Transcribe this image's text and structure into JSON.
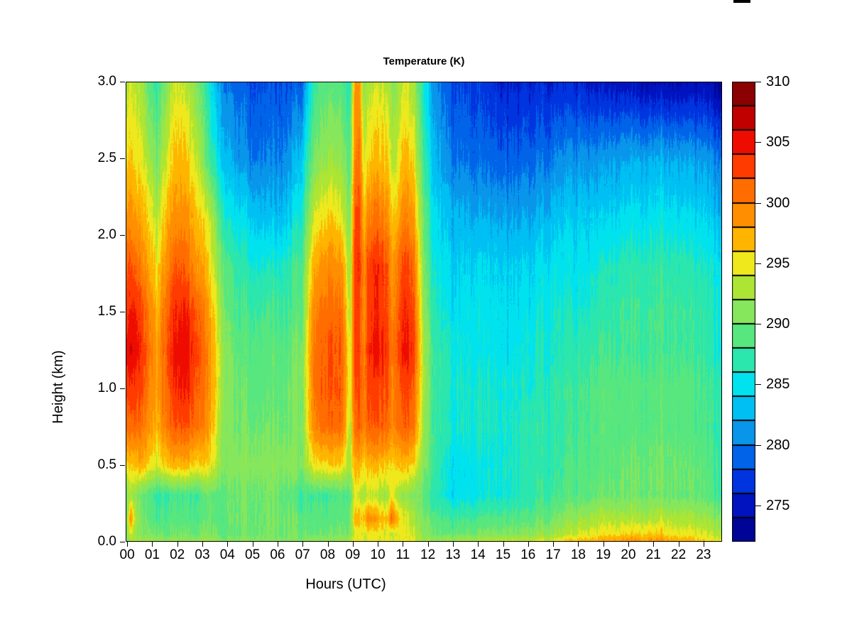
{
  "title": "Temperature (K)",
  "axes": {
    "xlabel": "Hours (UTC)",
    "ylabel": "Height (km)",
    "x_ticks": [
      "00",
      "01",
      "02",
      "03",
      "04",
      "05",
      "06",
      "07",
      "08",
      "09",
      "10",
      "11",
      "12",
      "13",
      "14",
      "15",
      "16",
      "17",
      "18",
      "19",
      "20",
      "21",
      "22",
      "23"
    ],
    "y_ticks": [
      "0.0",
      "0.5",
      "1.0",
      "1.5",
      "2.0",
      "2.5",
      "3.0"
    ],
    "colorbar_ticks": [
      "275",
      "280",
      "285",
      "290",
      "295",
      "300",
      "305",
      "310"
    ]
  },
  "chart_data": {
    "type": "heatmap",
    "title": "Temperature (K)",
    "xlabel": "Hours (UTC)",
    "ylabel": "Height (km)",
    "x_range_hours": [
      -0.06,
      23.74
    ],
    "y_range_km": [
      0,
      3
    ],
    "color_levels_K": {
      "min": 272,
      "max": 310,
      "step": 2
    },
    "palette_low_to_high": [
      "#000496",
      "#0013BE",
      "#0034DE",
      "#0063E8",
      "#0895EA",
      "#00BFF2",
      "#00E3EE",
      "#2BE6AD",
      "#58E67F",
      "#86E65C",
      "#ACE534",
      "#EEE81C",
      "#FFB400",
      "#FF8E00",
      "#FF6D00",
      "#FF3B00",
      "#EE0C00",
      "#C00000",
      "#8B0000"
    ],
    "colorbar_tick_values": [
      275,
      280,
      285,
      290,
      295,
      300,
      305,
      310
    ],
    "texture_noise_K": 1.0,
    "grid": {
      "x_hours": [
        0.0,
        0.15,
        0.3,
        0.6,
        0.9,
        1.2,
        1.6,
        2.0,
        2.4,
        2.8,
        3.2,
        3.6,
        4.0,
        4.5,
        5.0,
        5.5,
        6.0,
        6.5,
        7.0,
        7.4,
        7.8,
        8.2,
        8.6,
        8.9,
        9.1,
        9.3,
        9.45,
        9.6,
        10.0,
        10.4,
        10.55,
        10.7,
        11.0,
        11.4,
        11.8,
        12.2,
        13.0,
        14.0,
        15.0,
        16.0,
        17.0,
        18.0,
        19.0,
        20.0,
        21.0,
        22.0,
        23.0,
        23.75
      ],
      "y_km": [
        0.0,
        0.05,
        0.15,
        0.3,
        0.5,
        0.75,
        1.0,
        1.25,
        1.5,
        1.8,
        2.1,
        2.5,
        3.0
      ],
      "t_K": [
        [
          292,
          292,
          292,
          292,
          292,
          292,
          292,
          292,
          292,
          292,
          292,
          292,
          291,
          291,
          291,
          291,
          291,
          291,
          291,
          292,
          292,
          292,
          292,
          293,
          295,
          295,
          295,
          295,
          295,
          295,
          294,
          294,
          295,
          295,
          293,
          292,
          293,
          293,
          294,
          294,
          295,
          297,
          298,
          299,
          299,
          298,
          296,
          295
        ],
        [
          291,
          294,
          292,
          290,
          290,
          290,
          290,
          290,
          290,
          290,
          290,
          290,
          290,
          290,
          290,
          290,
          290,
          290,
          290,
          290,
          290,
          290,
          290,
          291,
          295,
          294,
          294,
          295,
          295,
          294,
          293,
          294,
          295,
          294,
          292,
          290,
          290,
          290,
          291,
          291,
          292,
          294,
          295,
          296,
          296,
          295,
          294,
          293
        ],
        [
          292,
          299,
          293,
          290,
          289,
          288,
          289,
          289,
          289,
          289,
          289,
          289,
          290,
          290,
          290,
          290,
          290,
          290,
          289,
          289,
          289,
          289,
          289,
          290,
          298,
          296,
          297,
          300,
          298,
          296,
          301,
          298,
          295,
          293,
          291,
          289,
          288,
          288,
          289,
          289,
          290,
          292,
          293,
          293,
          293,
          293,
          292,
          291
        ],
        [
          290,
          293,
          291,
          289,
          288,
          287,
          288,
          288,
          288,
          288,
          289,
          289,
          290,
          290,
          290,
          290,
          290,
          289,
          288,
          288,
          288,
          288,
          288,
          289,
          295,
          293,
          293,
          294,
          293,
          292,
          295,
          293,
          292,
          291,
          290,
          287,
          285,
          285,
          286,
          287,
          288,
          289,
          290,
          290,
          290,
          290,
          289,
          288
        ],
        [
          296,
          296,
          296,
          297,
          295,
          294,
          297,
          297,
          297,
          296,
          295,
          293,
          291,
          291,
          291,
          291,
          291,
          291,
          291,
          295,
          296,
          296,
          295,
          293,
          298,
          297,
          296,
          297,
          297,
          296,
          295,
          296,
          297,
          296,
          292,
          288,
          285,
          285,
          286,
          287,
          287,
          289,
          289,
          290,
          290,
          290,
          289,
          288
        ],
        [
          301,
          301,
          301,
          300,
          298,
          297,
          301,
          302,
          302,
          301,
          298,
          294,
          291,
          290,
          290,
          290,
          290,
          290,
          291,
          299,
          301,
          301,
          300,
          293,
          302,
          301,
          300,
          302,
          302,
          301,
          299,
          300,
          302,
          301,
          293,
          288,
          286,
          286,
          286,
          287,
          287,
          288,
          289,
          289,
          289,
          289,
          288,
          287
        ],
        [
          303,
          303,
          303,
          302,
          299,
          298,
          302,
          304,
          304,
          302,
          299,
          295,
          291,
          290,
          289,
          289,
          289,
          290,
          291,
          300,
          302,
          302,
          301,
          294,
          303,
          302,
          300,
          303,
          303,
          302,
          299,
          300,
          303,
          302,
          294,
          288,
          286,
          286,
          286,
          286,
          287,
          288,
          289,
          289,
          289,
          289,
          288,
          287
        ],
        [
          305,
          306,
          305,
          303,
          300,
          298,
          303,
          305,
          305,
          303,
          299,
          295,
          291,
          289,
          289,
          289,
          289,
          289,
          291,
          300,
          302,
          302,
          301,
          294,
          304,
          302,
          300,
          304,
          305,
          303,
          300,
          301,
          305,
          304,
          294,
          288,
          286,
          285,
          285,
          286,
          286,
          287,
          288,
          288,
          288,
          288,
          287,
          286
        ],
        [
          303,
          304,
          304,
          302,
          299,
          297,
          302,
          304,
          304,
          302,
          298,
          294,
          290,
          288,
          288,
          288,
          288,
          288,
          290,
          299,
          301,
          301,
          300,
          293,
          304,
          302,
          299,
          303,
          304,
          302,
          299,
          300,
          304,
          303,
          293,
          287,
          285,
          285,
          285,
          285,
          286,
          286,
          287,
          288,
          288,
          288,
          287,
          286
        ],
        [
          302,
          302,
          301,
          299,
          297,
          295,
          300,
          302,
          301,
          299,
          296,
          292,
          289,
          287,
          286,
          286,
          286,
          287,
          289,
          297,
          299,
          299,
          298,
          292,
          304,
          303,
          299,
          303,
          304,
          302,
          298,
          299,
          303,
          302,
          292,
          286,
          284,
          284,
          284,
          284,
          285,
          285,
          286,
          287,
          287,
          287,
          286,
          285
        ],
        [
          299,
          299,
          298,
          297,
          295,
          293,
          298,
          299,
          299,
          297,
          294,
          290,
          286,
          285,
          284,
          283,
          283,
          284,
          287,
          294,
          296,
          296,
          294,
          291,
          303,
          302,
          297,
          300,
          301,
          299,
          296,
          296,
          300,
          299,
          291,
          285,
          283,
          282,
          282,
          282,
          283,
          284,
          284,
          285,
          285,
          285,
          284,
          283
        ],
        [
          296,
          296,
          295,
          294,
          292,
          290,
          295,
          297,
          296,
          294,
          288,
          285,
          283,
          281,
          280,
          280,
          280,
          281,
          284,
          290,
          292,
          292,
          291,
          289,
          301,
          300,
          294,
          296,
          297,
          296,
          293,
          293,
          297,
          296,
          289,
          283,
          280,
          279,
          279,
          279,
          280,
          281,
          281,
          282,
          282,
          282,
          281,
          280
        ],
        [
          293,
          294,
          293,
          292,
          288,
          287,
          292,
          294,
          293,
          291,
          286,
          282,
          280,
          279,
          278,
          278,
          278,
          278,
          279,
          287,
          289,
          289,
          288,
          287,
          299,
          297,
          292,
          293,
          294,
          293,
          291,
          291,
          294,
          293,
          287,
          281,
          278,
          277,
          276,
          276,
          276,
          276,
          275,
          275,
          274,
          274,
          274,
          273
        ]
      ]
    }
  },
  "decorations": {
    "top_edge_artifact_color": "#000000"
  }
}
